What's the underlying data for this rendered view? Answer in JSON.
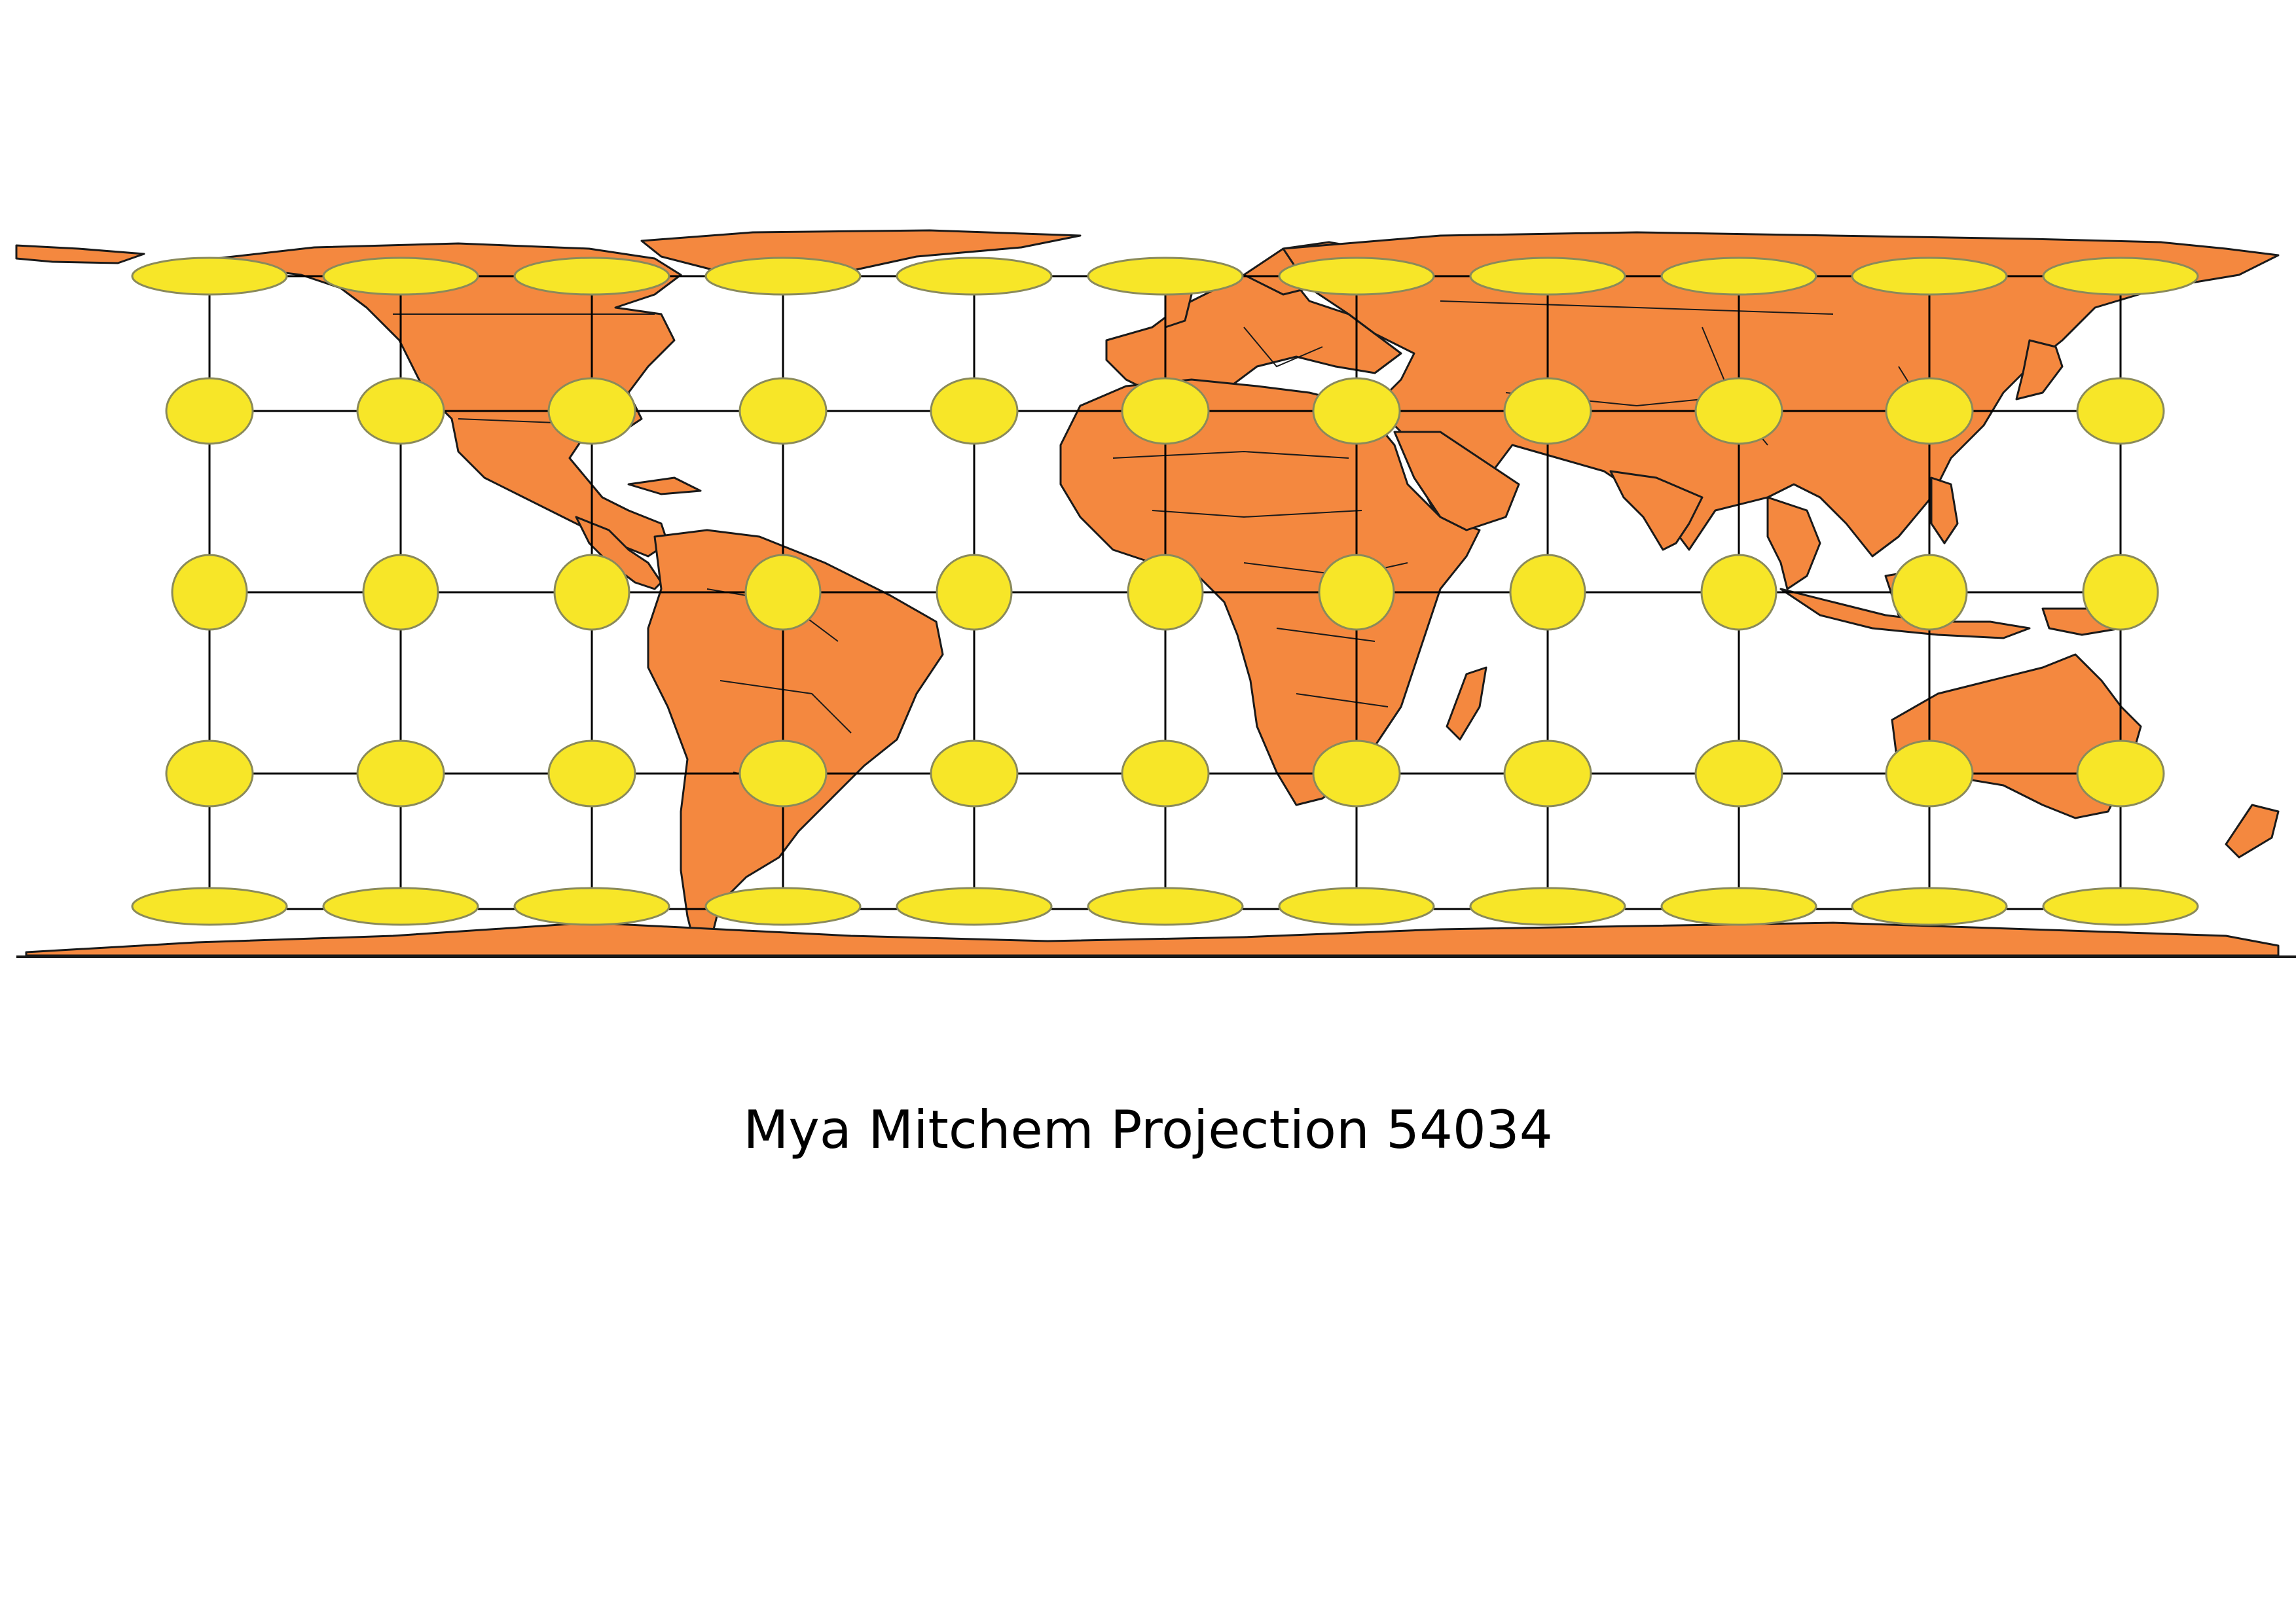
{
  "map": {
    "title": "Mya Mitchem Projection 54034",
    "projection_code": "54034",
    "land_color": "#F4883F",
    "border_color": "#1a1a1a",
    "indicatrix_color": "#F7E628",
    "indicatrix_stroke": "#8a8a5a",
    "graticule_color": "#000000",
    "background_color": "#ffffff"
  }
}
